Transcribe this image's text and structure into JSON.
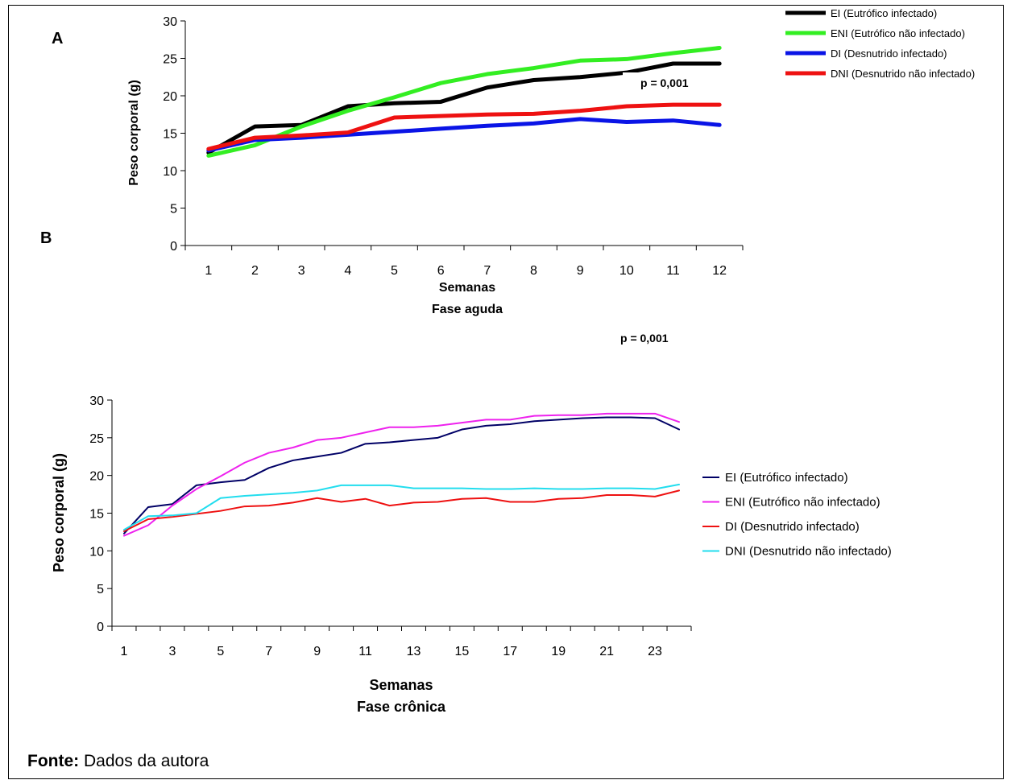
{
  "chart_data": [
    {
      "type": "line",
      "panel_label": "A",
      "ylabel": "Peso corporal (g)",
      "xlabel": "Semanas",
      "xlabel2": "Fase aguda",
      "annotation": "p = 0,001",
      "x": [
        1,
        2,
        3,
        4,
        5,
        6,
        7,
        8,
        9,
        10,
        11,
        12
      ],
      "x_tick_labels": [
        "1",
        "2",
        "3",
        "4",
        "5",
        "6",
        "7",
        "8",
        "9",
        "10",
        "11",
        "12"
      ],
      "ylim": [
        0,
        30
      ],
      "y_ticks": [
        0,
        5,
        10,
        15,
        20,
        25,
        30
      ],
      "grid": false,
      "legend_position": "top-right",
      "series": [
        {
          "name": "EI (Eutrófico infectado)",
          "color": "#000000",
          "values": [
            12.4,
            15.9,
            16.1,
            18.6,
            19.0,
            19.2,
            21.1,
            22.1,
            22.5,
            23.1,
            24.3,
            24.3
          ]
        },
        {
          "name": "ENI (Eutrófico não infectado)",
          "color": "#33ee22",
          "values": [
            12.0,
            13.4,
            15.9,
            18.0,
            19.8,
            21.7,
            22.9,
            23.7,
            24.7,
            24.9,
            25.7,
            26.4
          ]
        },
        {
          "name": "DI (Desnutrido infectado)",
          "color": "#0a14e6",
          "values": [
            12.7,
            14.1,
            14.4,
            14.8,
            15.2,
            15.6,
            16.0,
            16.3,
            16.9,
            16.5,
            16.7,
            16.1
          ]
        },
        {
          "name": "DNI (Desnutrido não infectado)",
          "color": "#ee1111",
          "values": [
            12.9,
            14.4,
            14.7,
            15.1,
            17.1,
            17.3,
            17.5,
            17.6,
            18.0,
            18.6,
            18.8,
            18.8
          ]
        }
      ]
    },
    {
      "type": "line",
      "panel_label": "B",
      "ylabel": "Peso corporal (g)",
      "xlabel": "Semanas",
      "xlabel2": "Fase crônica",
      "annotation": "p = 0,001",
      "x": [
        1,
        2,
        3,
        4,
        5,
        6,
        7,
        8,
        9,
        10,
        11,
        12,
        13,
        14,
        15,
        16,
        17,
        18,
        19,
        20,
        21,
        22,
        23,
        24
      ],
      "x_tick_labels": [
        "1",
        "3",
        "5",
        "7",
        "9",
        "11",
        "13",
        "15",
        "17",
        "19",
        "21",
        "23"
      ],
      "ylim": [
        0,
        30
      ],
      "y_ticks": [
        0,
        5,
        10,
        15,
        20,
        25,
        30
      ],
      "grid": false,
      "legend_position": "right",
      "series": [
        {
          "name": "EI (Eutrófico infectado)",
          "color": "#000066",
          "values": [
            12.3,
            15.8,
            16.2,
            18.7,
            19.1,
            19.4,
            21.0,
            22.0,
            22.5,
            23.0,
            24.2,
            24.4,
            24.7,
            25.0,
            26.1,
            26.6,
            26.8,
            27.2,
            27.4,
            27.6,
            27.7,
            27.7,
            27.6,
            26.1
          ]
        },
        {
          "name": "ENI (Eutrófico não infectado)",
          "color": "#ee22ee",
          "values": [
            12.0,
            13.4,
            16.0,
            18.2,
            19.9,
            21.7,
            23.0,
            23.7,
            24.7,
            25.0,
            25.7,
            26.4,
            26.4,
            26.6,
            27.0,
            27.4,
            27.4,
            27.9,
            28.0,
            28.0,
            28.2,
            28.2,
            28.2,
            27.1
          ]
        },
        {
          "name": "DI (Desnutrido infectado)",
          "color": "#ee1111",
          "values": [
            12.6,
            14.2,
            14.5,
            14.9,
            15.3,
            15.9,
            16.0,
            16.4,
            17.0,
            16.5,
            16.9,
            16.0,
            16.4,
            16.5,
            16.9,
            17.0,
            16.5,
            16.5,
            16.9,
            17.0,
            17.4,
            17.4,
            17.2,
            18.0
          ]
        },
        {
          "name": "DNI (Desnutrido não infectado)",
          "color": "#22ddee",
          "values": [
            12.8,
            14.6,
            14.7,
            15.0,
            17.0,
            17.3,
            17.5,
            17.7,
            18.0,
            18.7,
            18.7,
            18.7,
            18.3,
            18.3,
            18.3,
            18.2,
            18.2,
            18.3,
            18.2,
            18.2,
            18.3,
            18.3,
            18.2,
            18.8
          ]
        }
      ]
    }
  ],
  "source": {
    "label": "Fonte:",
    "text": "Dados da autora"
  }
}
